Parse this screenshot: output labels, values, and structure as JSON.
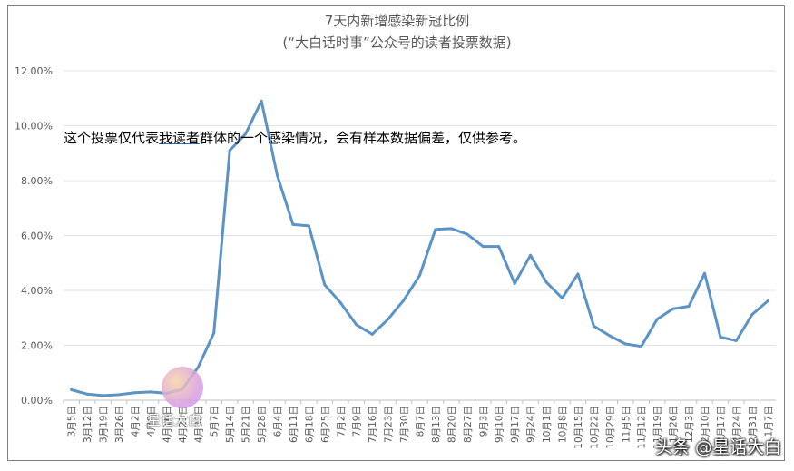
{
  "chart_data": {
    "type": "line",
    "title": "7天内新增感染新冠比例",
    "subtitle": "(“大白话时事”公众号的读者投票数据)",
    "annotation": {
      "before": "这个投票仅代表",
      "underlined": "我读者",
      "after": "群体的一个感染情况，会有样本数据偏差，仅供参考。"
    },
    "ylim": [
      0,
      12
    ],
    "yticks": [
      "0.00%",
      "2.00%",
      "4.00%",
      "6.00%",
      "8.00%",
      "10.00%",
      "12.00%"
    ],
    "grid": true,
    "line_color": "#5b93c6",
    "categories": [
      "3月5日",
      "3月12日",
      "3月19日",
      "3月26日",
      "4月2日",
      "4月9日",
      "4月16日",
      "4月23日",
      "4月30日",
      "5月7日",
      "5月14日",
      "5月21日",
      "5月28日",
      "6月4日",
      "6月11日",
      "6月18日",
      "6月25日",
      "7月2日",
      "7月9日",
      "7月16日",
      "7月23日",
      "7月30日",
      "8月7日",
      "8月13日",
      "8月20日",
      "8月27日",
      "9月3日",
      "9月10日",
      "9月17日",
      "9月24日",
      "10月1日",
      "10月8日",
      "10月15日",
      "10月22日",
      "10月29日",
      "11月5日",
      "11月12日",
      "11月19日",
      "11月26日",
      "12月3日",
      "12月10日",
      "12月17日",
      "12月24日",
      "12月31日",
      "1月7日"
    ],
    "values": [
      0.38,
      0.22,
      0.17,
      0.2,
      0.27,
      0.3,
      0.25,
      0.4,
      1.2,
      2.45,
      9.1,
      9.7,
      10.9,
      8.2,
      6.4,
      6.35,
      4.2,
      3.55,
      2.75,
      2.4,
      2.95,
      3.65,
      4.55,
      6.22,
      6.25,
      6.05,
      5.6,
      5.6,
      4.25,
      5.28,
      4.3,
      3.72,
      4.6,
      2.7,
      2.35,
      2.05,
      1.96,
      2.95,
      3.33,
      3.42,
      4.62,
      2.3,
      2.17,
      3.12,
      3.62
    ],
    "unit": "%"
  },
  "watermark": {
    "text": "头条 @星话大白",
    "badge_text": "星话大白"
  }
}
